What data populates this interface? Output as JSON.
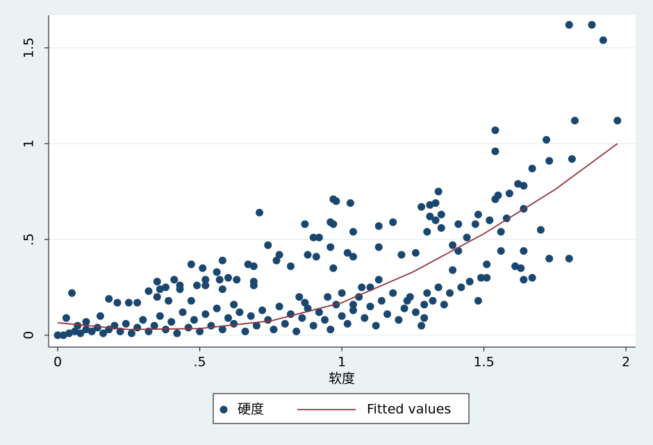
{
  "chart_data": {
    "type": "scatter",
    "xlabel": "软度",
    "xlim": [
      -0.032,
      2.034
    ],
    "ylim": [
      -0.062,
      1.67
    ],
    "xticks": [
      0,
      {
        "value": 0.5,
        "label": ".5"
      },
      1,
      1.5,
      2
    ],
    "yticks": [
      0,
      {
        "value": 0.5,
        "label": ".5"
      },
      1,
      1.5
    ],
    "grid": true,
    "legend": "bottom",
    "series": [
      {
        "name": "硬度",
        "type": "scatter",
        "color": "#1a476f",
        "x": [
          1.8,
          1.88,
          1.92,
          1.97,
          1.82,
          1.54,
          1.72,
          1.54,
          1.81,
          1.73,
          1.67,
          1.62,
          1.64,
          1.59,
          1.55,
          1.34,
          1.54,
          0.97,
          0.98,
          1.03,
          1.33,
          1.28,
          1.31,
          0.71,
          1.64,
          1.35,
          1.48,
          1.58,
          1.52,
          1.31,
          1.18,
          1.33,
          0.96,
          0.97,
          0.87,
          1.41,
          1.47,
          1.13,
          1.35,
          1.56,
          1.7,
          1.3,
          1.04,
          0.9,
          0.92,
          1.44,
          1.39,
          0.74,
          1.13,
          0.96,
          1.56,
          1.64,
          1.41,
          0.88,
          1.02,
          1.26,
          0.91,
          1.04,
          0.78,
          1.21,
          0.77,
          0.58,
          1.73,
          1.8,
          0.47,
          0.67,
          0.69,
          0.82,
          1.51,
          1.61,
          0.97,
          0.51,
          1.63,
          0.56,
          1.39,
          0.6,
          0.41,
          0.52,
          0.57,
          0.63,
          1.64,
          1.67,
          1.49,
          1.51,
          1.13,
          0.35,
          0.43,
          0.69,
          0.38,
          0.49,
          0.52,
          0.05,
          0.32,
          0.36,
          0.43,
          0.58,
          0.69,
          0.18,
          0.21,
          0.25,
          0.28,
          0.35,
          0.39,
          0.47,
          0.62,
          1.48,
          0.87,
          1.07,
          1.04,
          1.23,
          1.29,
          1.36,
          1.29,
          1.28,
          0.03,
          0.1,
          0.15,
          0.07,
          0,
          0.02,
          0.04,
          0.06,
          0.08,
          0.1,
          0.12,
          0.14,
          0.16,
          0.18,
          0.2,
          0.22,
          0.24,
          0.26,
          0.28,
          0.3,
          0.32,
          0.34,
          0.36,
          0.38,
          0.4,
          0.42,
          0.44,
          0.46,
          0.48,
          0.5,
          0.52,
          0.54,
          0.56,
          0.58,
          0.6,
          0.62,
          0.64,
          0.66,
          0.68,
          0.7,
          0.72,
          0.74,
          0.76,
          0.78,
          0.8,
          0.82,
          0.84,
          0.86,
          0.88,
          0.9,
          0.92,
          0.94,
          0.96,
          0.98,
          1.0,
          1.02,
          1.04,
          1.06,
          1.08,
          1.1,
          1.12,
          1.14,
          1.16,
          1.18,
          1.2,
          1.22,
          1.24,
          1.26,
          1.3,
          1.32,
          1.34,
          1.38,
          1.42,
          1.45,
          1.1,
          1.0,
          0.95,
          0.85
        ],
        "values": [
          1.62,
          1.62,
          1.54,
          1.12,
          1.12,
          1.07,
          1.02,
          0.96,
          0.92,
          0.91,
          0.87,
          0.79,
          0.78,
          0.74,
          0.73,
          0.75,
          0.71,
          0.71,
          0.7,
          0.69,
          0.69,
          0.67,
          0.68,
          0.64,
          0.66,
          0.63,
          0.63,
          0.61,
          0.6,
          0.62,
          0.59,
          0.6,
          0.59,
          0.58,
          0.58,
          0.58,
          0.58,
          0.57,
          0.56,
          0.54,
          0.55,
          0.54,
          0.54,
          0.51,
          0.51,
          0.51,
          0.47,
          0.47,
          0.46,
          0.46,
          0.44,
          0.44,
          0.44,
          0.42,
          0.43,
          0.43,
          0.41,
          0.41,
          0.42,
          0.42,
          0.39,
          0.39,
          0.4,
          0.4,
          0.37,
          0.37,
          0.36,
          0.36,
          0.37,
          0.36,
          0.35,
          0.35,
          0.35,
          0.33,
          0.34,
          0.3,
          0.29,
          0.29,
          0.29,
          0.29,
          0.29,
          0.3,
          0.3,
          0.3,
          0.29,
          0.28,
          0.26,
          0.28,
          0.25,
          0.26,
          0.26,
          0.22,
          0.23,
          0.24,
          0.24,
          0.24,
          0.26,
          0.19,
          0.17,
          0.17,
          0.17,
          0.2,
          0.18,
          0.18,
          0.16,
          0.18,
          0.17,
          0.25,
          0.16,
          0.18,
          0.16,
          0.16,
          0.09,
          0.05,
          0.09,
          0.07,
          0.1,
          0.05,
          0,
          0,
          0.01,
          0.02,
          0.01,
          0.03,
          0.02,
          0.04,
          0.01,
          0.03,
          0.05,
          0.02,
          0.06,
          0.01,
          0.04,
          0.08,
          0.02,
          0.05,
          0.1,
          0.03,
          0.07,
          0.01,
          0.12,
          0.04,
          0.08,
          0.02,
          0.11,
          0.05,
          0.14,
          0.03,
          0.09,
          0.06,
          0.12,
          0.02,
          0.1,
          0.05,
          0.13,
          0.08,
          0.03,
          0.15,
          0.06,
          0.11,
          0.02,
          0.09,
          0.14,
          0.05,
          0.12,
          0.08,
          0.03,
          0.16,
          0.1,
          0.06,
          0.13,
          0.2,
          0.09,
          0.15,
          0.05,
          0.18,
          0.11,
          0.22,
          0.08,
          0.14,
          0.2,
          0.12,
          0.22,
          0.18,
          0.25,
          0.22,
          0.25,
          0.28,
          0.25,
          0.22,
          0.2,
          0.2
        ]
      },
      {
        "name": "Fitted values",
        "type": "line",
        "color": "#90353b",
        "x": [
          0,
          0.25,
          0.5,
          0.75,
          1,
          1.25,
          1.5,
          1.75,
          1.97
        ],
        "values": [
          0.065,
          0.03,
          0.035,
          0.075,
          0.17,
          0.33,
          0.53,
          0.76,
          1.0
        ]
      }
    ]
  }
}
